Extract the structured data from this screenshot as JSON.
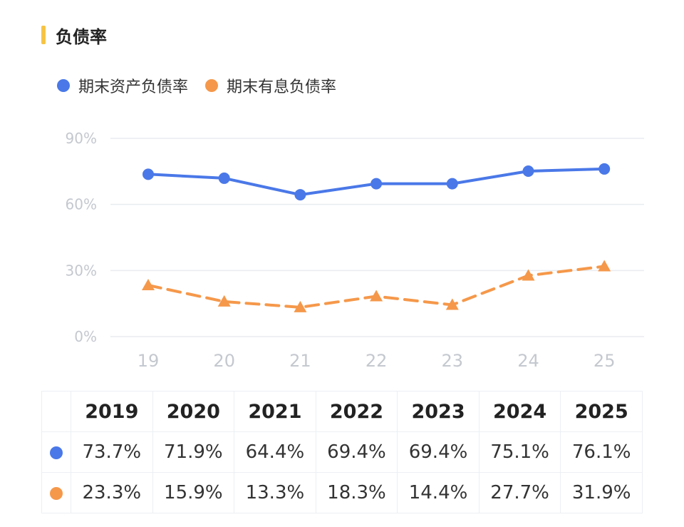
{
  "header": {
    "title": "负债率",
    "accent_color": "#f6c445"
  },
  "colors": {
    "asset_series": "#4a78e8",
    "debt_series": "#f5984a",
    "grid": "#e9ecf0",
    "tick": "#c4c8cf"
  },
  "chart_data": {
    "type": "line",
    "title": "",
    "xlabel": "",
    "ylabel": "",
    "categories": [
      "19",
      "20",
      "21",
      "22",
      "23",
      "24",
      "25"
    ],
    "ylim": [
      0,
      90
    ],
    "yticks": [
      "0%",
      "30%",
      "60%",
      "90%"
    ],
    "ytick_values": [
      0,
      30,
      60,
      90
    ],
    "grid": true,
    "legend_position": "top-left",
    "series": [
      {
        "name": "期末资产负债率",
        "values": [
          73.7,
          71.9,
          64.4,
          69.4,
          69.4,
          75.1,
          76.1
        ],
        "marker": "circle",
        "line_style": "solid"
      },
      {
        "name": "期末有息负债率",
        "values": [
          23.3,
          15.9,
          13.3,
          18.3,
          14.4,
          27.7,
          31.9
        ],
        "marker": "triangle",
        "line_style": "dashed"
      }
    ]
  },
  "table": {
    "years": [
      "2019",
      "2020",
      "2021",
      "2022",
      "2023",
      "2024",
      "2025"
    ],
    "asset_row": [
      "73.7%",
      "71.9%",
      "64.4%",
      "69.4%",
      "69.4%",
      "75.1%",
      "76.1%"
    ],
    "debt_row": [
      "23.3%",
      "15.9%",
      "13.3%",
      "18.3%",
      "14.4%",
      "27.7%",
      "31.9%"
    ]
  }
}
